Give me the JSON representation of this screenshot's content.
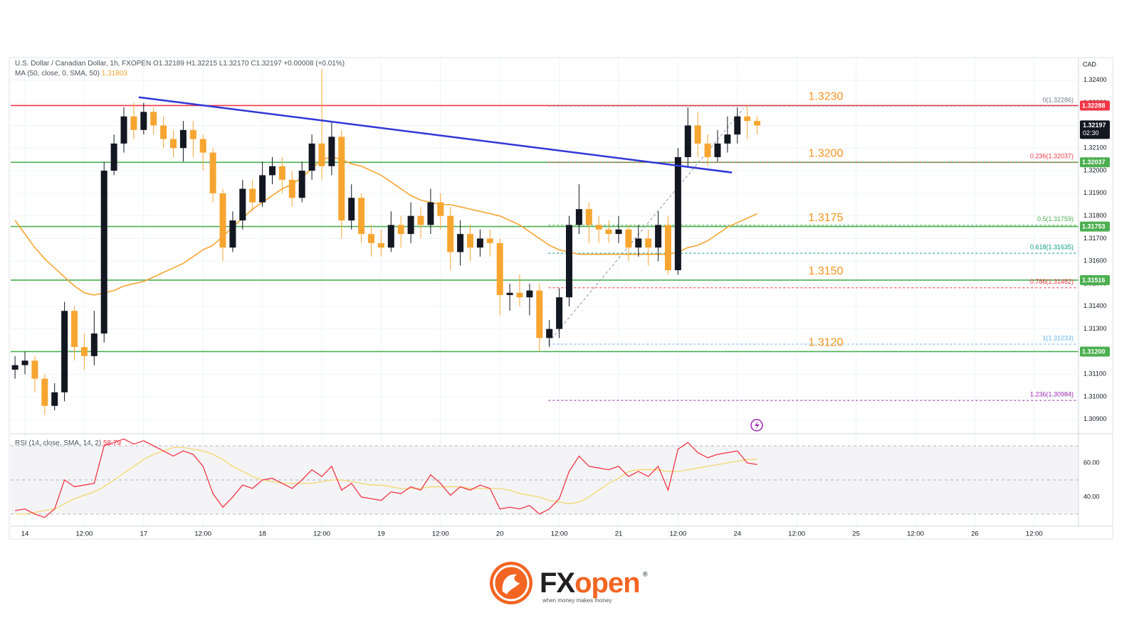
{
  "chart_data": {
    "type": "candlestick",
    "title": "U.S. Dollar / Canadian Dollar, 1h, FXOPEN",
    "ohlc_text": "O1.32189 H1.32215 L1.32170 C1.32197 +0.00008 (+0.01%)",
    "currency": "CAD",
    "up_color": "#131722",
    "down_color": "#f7a531",
    "x": [
      -2,
      0,
      2,
      4,
      6,
      8,
      10,
      12,
      14,
      16,
      18,
      20,
      22,
      24,
      26,
      28,
      30,
      32,
      34,
      36,
      38,
      40,
      42,
      44,
      46,
      48,
      50,
      52,
      54,
      56,
      58,
      60,
      62,
      64,
      66,
      68,
      70,
      72,
      74,
      76,
      78,
      80,
      82,
      84,
      86,
      88,
      90,
      92,
      94,
      96,
      98,
      100,
      102,
      104,
      106,
      108,
      110,
      112,
      114,
      116,
      118,
      120,
      122,
      124,
      126,
      128,
      130,
      132,
      134,
      136,
      138,
      140,
      142,
      144,
      146,
      148
    ],
    "open": [
      1.3112,
      1.3114,
      1.3116,
      1.3108,
      1.3096,
      1.3102,
      1.3138,
      1.3122,
      1.3118,
      1.3128,
      1.32,
      1.3212,
      1.3224,
      1.3218,
      1.3226,
      1.322,
      1.3214,
      1.321,
      1.3218,
      1.3214,
      1.3208,
      1.319,
      1.3166,
      1.3178,
      1.3192,
      1.3186,
      1.3198,
      1.3202,
      1.3196,
      1.3188,
      1.32,
      1.3212,
      1.3202,
      1.3215,
      1.3178,
      1.3188,
      1.3172,
      1.3168,
      1.3166,
      1.3176,
      1.3172,
      1.318,
      1.3176,
      1.3186,
      1.318,
      1.3164,
      1.3172,
      1.3166,
      1.317,
      1.3168,
      1.3145,
      1.3146,
      1.3144,
      1.3147,
      1.3126,
      1.313,
      1.3144,
      1.3176,
      1.3183,
      1.3176,
      1.3174,
      1.3172,
      1.3174,
      1.3166,
      1.317,
      1.3166,
      1.3176,
      1.3156,
      1.3206,
      1.322,
      1.3212,
      1.3206,
      1.3212,
      1.3216,
      1.3224,
      1.3222
    ],
    "high": [
      1.3118,
      1.312,
      1.3118,
      1.311,
      1.3106,
      1.3142,
      1.314,
      1.3128,
      1.3138,
      1.3204,
      1.3216,
      1.3228,
      1.323,
      1.323,
      1.3228,
      1.3224,
      1.3218,
      1.3222,
      1.3222,
      1.3216,
      1.321,
      1.3192,
      1.3182,
      1.3196,
      1.3196,
      1.3204,
      1.3206,
      1.3206,
      1.32,
      1.3204,
      1.3216,
      1.3245,
      1.3222,
      1.3218,
      1.3194,
      1.319,
      1.3176,
      1.3174,
      1.3182,
      1.318,
      1.3186,
      1.3184,
      1.3192,
      1.319,
      1.3184,
      1.3178,
      1.3176,
      1.3174,
      1.3174,
      1.317,
      1.315,
      1.3154,
      1.315,
      1.315,
      1.3134,
      1.3148,
      1.318,
      1.3194,
      1.3186,
      1.318,
      1.3178,
      1.318,
      1.3176,
      1.3176,
      1.3174,
      1.3182,
      1.318,
      1.321,
      1.3228,
      1.3226,
      1.3216,
      1.3218,
      1.3224,
      1.3228,
      1.3229,
      1.3224
    ],
    "low": [
      1.3108,
      1.311,
      1.3102,
      1.3092,
      1.3094,
      1.3098,
      1.3116,
      1.3112,
      1.3114,
      1.3124,
      1.3198,
      1.3208,
      1.3214,
      1.3216,
      1.3216,
      1.321,
      1.3206,
      1.3204,
      1.3206,
      1.32,
      1.3186,
      1.316,
      1.3164,
      1.3174,
      1.3182,
      1.3184,
      1.3194,
      1.319,
      1.3184,
      1.3186,
      1.3196,
      1.3196,
      1.3198,
      1.317,
      1.3174,
      1.3168,
      1.3162,
      1.3162,
      1.3164,
      1.3166,
      1.3168,
      1.317,
      1.3172,
      1.3174,
      1.3156,
      1.3158,
      1.316,
      1.3162,
      1.3162,
      1.3136,
      1.3138,
      1.314,
      1.3136,
      1.312,
      1.3122,
      1.3126,
      1.314,
      1.3172,
      1.3168,
      1.3168,
      1.3168,
      1.3168,
      1.316,
      1.3162,
      1.3158,
      1.316,
      1.3154,
      1.3154,
      1.3202,
      1.3206,
      1.3202,
      1.3204,
      1.3208,
      1.3212,
      1.3214,
      1.3216
    ],
    "close": [
      1.3114,
      1.3116,
      1.3108,
      1.3096,
      1.3102,
      1.3138,
      1.3122,
      1.3118,
      1.3128,
      1.32,
      1.3212,
      1.3224,
      1.3218,
      1.3226,
      1.322,
      1.3214,
      1.321,
      1.3218,
      1.3214,
      1.3208,
      1.319,
      1.3166,
      1.3178,
      1.3192,
      1.3186,
      1.3198,
      1.3202,
      1.3196,
      1.3188,
      1.32,
      1.3212,
      1.3202,
      1.3215,
      1.3178,
      1.3188,
      1.3172,
      1.3168,
      1.3166,
      1.3176,
      1.3172,
      1.318,
      1.3176,
      1.3186,
      1.318,
      1.3164,
      1.3172,
      1.3166,
      1.317,
      1.3168,
      1.3145,
      1.3146,
      1.3144,
      1.3147,
      1.3126,
      1.313,
      1.3144,
      1.3176,
      1.3183,
      1.3176,
      1.3174,
      1.3172,
      1.3174,
      1.3166,
      1.317,
      1.3166,
      1.3176,
      1.3156,
      1.3206,
      1.322,
      1.3212,
      1.3206,
      1.3212,
      1.3216,
      1.3224,
      1.3222,
      1.322
    ],
    "ma": {
      "name": "MA (50, close, 0, SMA, 50)",
      "last": 1.31803,
      "color": "#f7a531",
      "values": [
        1.3178,
        1.3172,
        1.3166,
        1.3161,
        1.3157,
        1.3153,
        1.3149,
        1.3146,
        1.3145,
        1.3146,
        1.3147,
        1.3149,
        1.315,
        1.3151,
        1.3153,
        1.3155,
        1.3157,
        1.3159,
        1.3162,
        1.3165,
        1.3167,
        1.3171,
        1.3175,
        1.3179,
        1.3183,
        1.3186,
        1.3189,
        1.3192,
        1.3194,
        1.3197,
        1.3201,
        1.3205,
        1.3206,
        1.3205,
        1.3203,
        1.3202,
        1.32,
        1.3198,
        1.3195,
        1.3192,
        1.3189,
        1.3187,
        1.3186,
        1.3185,
        1.3185,
        1.3184,
        1.3183,
        1.3182,
        1.3181,
        1.318,
        1.3178,
        1.3176,
        1.3173,
        1.317,
        1.3167,
        1.3165,
        1.3164,
        1.3163,
        1.3163,
        1.3163,
        1.3163,
        1.3163,
        1.3163,
        1.3163,
        1.3163,
        1.3163,
        1.3163,
        1.3164,
        1.3166,
        1.3167,
        1.3169,
        1.3172,
        1.3175,
        1.3177,
        1.3179,
        1.3181
      ]
    },
    "xlim": [
      -2.88,
      212.95
    ],
    "xticks": [
      {
        "value": 0,
        "label": "14"
      },
      {
        "value": 12,
        "label": "12:00"
      },
      {
        "value": 24,
        "label": "17"
      },
      {
        "value": 36,
        "label": "12:00"
      },
      {
        "value": 48,
        "label": "18"
      },
      {
        "value": 60,
        "label": "12:00"
      },
      {
        "value": 72,
        "label": "19"
      },
      {
        "value": 84,
        "label": "12:00"
      },
      {
        "value": 96,
        "label": "20"
      },
      {
        "value": 108,
        "label": "12:00"
      },
      {
        "value": 120,
        "label": "21"
      },
      {
        "value": 132,
        "label": "12:00"
      },
      {
        "value": 144,
        "label": "24"
      },
      {
        "value": 156,
        "label": "12:00"
      },
      {
        "value": 168,
        "label": "25"
      },
      {
        "value": 180,
        "label": "12:00"
      },
      {
        "value": 192,
        "label": "26"
      },
      {
        "value": 204,
        "label": "12:00"
      }
    ],
    "ylim": [
      1.30843,
      1.32497
    ],
    "yticks": [
      {
        "value": 1.309,
        "label": "1.30900"
      },
      {
        "value": 1.31,
        "label": "1.31000"
      },
      {
        "value": 1.311,
        "label": "1.31100"
      },
      {
        "value": 1.312,
        "label": "1.31200"
      },
      {
        "value": 1.313,
        "label": "1.31300"
      },
      {
        "value": 1.314,
        "label": "1.31400"
      },
      {
        "value": 1.315,
        "label": "1.31500"
      },
      {
        "value": 1.316,
        "label": "1.31600"
      },
      {
        "value": 1.317,
        "label": "1.31700"
      },
      {
        "value": 1.318,
        "label": "1.31800"
      },
      {
        "value": 1.319,
        "label": "1.31900"
      },
      {
        "value": 1.32,
        "label": "1.32000"
      },
      {
        "value": 1.321,
        "label": "1.32100"
      },
      {
        "value": 1.322,
        "label": "1.32200"
      },
      {
        "value": 1.323,
        "label": "1.32300"
      },
      {
        "value": 1.324,
        "label": "1.32400"
      }
    ],
    "grid": true,
    "trendline": {
      "x": [
        23.0,
        142.9
      ],
      "values": [
        1.32325,
        1.31992
      ],
      "color": "#2f37d6"
    },
    "fib_line": {
      "x": [
        105.8,
        145.3
      ],
      "values": [
        1.3124,
        1.32277
      ],
      "color": "#9598a1"
    },
    "levels": [
      {
        "value": 1.32288,
        "label": "1.3230",
        "color": "#f23645"
      },
      {
        "value": 1.32037,
        "label": "1.3200",
        "color": "#4caf50"
      },
      {
        "value": 1.31753,
        "label": "1.3175",
        "color": "#4caf50"
      },
      {
        "value": 1.31516,
        "label": "1.3150",
        "color": "#4caf50"
      },
      {
        "value": 1.312,
        "label": "1.3120",
        "color": "#4caf50"
      }
    ],
    "fib_levels": [
      {
        "value": 1.32286,
        "label": "0(1.32286)",
        "color": "#787b86"
      },
      {
        "value": 1.32037,
        "label": "0.236(1.32037)",
        "color": "#f23645"
      },
      {
        "value": 1.31759,
        "label": "0.5(1.31759)",
        "color": "#4caf50"
      },
      {
        "value": 1.31635,
        "label": "0.618(1.31635)",
        "color": "#089981"
      },
      {
        "value": 1.31482,
        "label": "0.786(1.31482)",
        "color": "#f23645"
      },
      {
        "value": 1.31233,
        "label": "1(1.31233)",
        "color": "#64b5f6"
      },
      {
        "value": 1.30984,
        "label": "1.236(1.30984)",
        "color": "#9c27b0"
      }
    ],
    "price_labels": [
      {
        "value": 1.32288,
        "label": "1.32288",
        "color": "#f23645"
      },
      {
        "value": 1.32037,
        "label": "1.32037",
        "color": "#4caf50"
      },
      {
        "value": 1.31753,
        "label": "1.31753",
        "color": "#4caf50"
      },
      {
        "value": 1.31516,
        "label": "1.31516",
        "color": "#4caf50"
      },
      {
        "value": 1.312,
        "label": "1.31200",
        "color": "#4caf50"
      }
    ],
    "last_price": {
      "value": 1.32197,
      "label": "1.32197",
      "countdown": "02:30",
      "color": "#131722"
    },
    "rsi": {
      "name": "RSI (14, close, SMA, 14, 2)",
      "last": 58.79,
      "color": "#f23645",
      "sma_color": "#f5d76e",
      "ylim": [
        22.9,
        76.25
      ],
      "yticks": [
        {
          "value": 40,
          "label": "40.00"
        },
        {
          "value": 60,
          "label": "60.00"
        }
      ],
      "bands": [
        30,
        50,
        70
      ],
      "values": [
        32,
        33,
        30,
        28,
        33,
        50,
        46,
        47,
        48,
        70,
        72,
        74,
        71,
        73,
        70,
        67,
        64,
        67,
        65,
        58,
        42,
        34,
        40,
        47,
        45,
        50,
        51,
        48,
        45,
        50,
        56,
        52,
        58,
        44,
        48,
        40,
        39,
        38,
        43,
        42,
        46,
        44,
        53,
        48,
        41,
        46,
        44,
        47,
        45,
        33,
        34,
        33,
        35,
        30,
        33,
        39,
        55,
        64,
        58,
        57,
        56,
        58,
        52,
        55,
        52,
        58,
        44,
        68,
        72,
        66,
        63,
        65,
        66,
        67,
        60,
        59
      ],
      "sma": [
        30,
        30,
        31,
        32,
        33,
        36,
        39,
        41,
        43,
        46,
        50,
        54,
        58,
        62,
        65,
        67,
        69,
        69,
        68,
        67,
        65,
        62,
        58,
        55,
        52,
        50,
        49,
        48,
        48,
        48,
        48,
        49,
        50,
        50,
        49,
        48,
        47,
        47,
        46,
        45,
        45,
        45,
        46,
        46,
        46,
        46,
        45,
        45,
        45,
        45,
        44,
        42,
        41,
        40,
        38,
        37,
        36,
        37,
        40,
        44,
        48,
        51,
        55,
        56,
        56,
        56,
        55,
        55,
        56,
        57,
        58,
        59,
        60,
        61,
        62,
        62
      ]
    }
  },
  "logo": {
    "brand_prefix": "FX",
    "brand_suffix": "open",
    "tagline": "when money makes money"
  }
}
